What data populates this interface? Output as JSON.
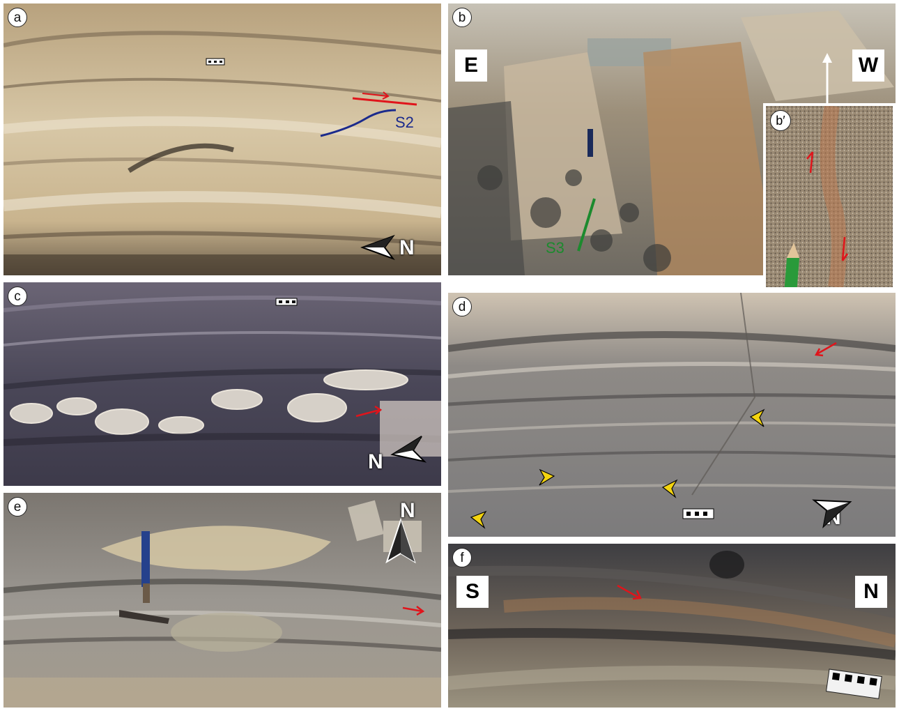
{
  "panels": {
    "a": {
      "label": "a",
      "north": "N",
      "foliation": "S2"
    },
    "b": {
      "label": "b",
      "east": "E",
      "west": "W",
      "foliation": "S3"
    },
    "b_inset": {
      "label": "b′"
    },
    "c": {
      "label": "c",
      "north": "N"
    },
    "d": {
      "label": "d",
      "north": "N"
    },
    "e": {
      "label": "e",
      "north": "N"
    },
    "f": {
      "label": "f",
      "south": "S",
      "north": "N"
    }
  },
  "colors": {
    "shear_sense_arrow": "#e0141b",
    "s2_trace": "#1b2a8c",
    "s3_trace": "#1c8a2e",
    "marker_arrowhead": "#f4d40f"
  },
  "icons": [
    "north-arrow-icon",
    "shear-sense-arrow-icon",
    "marker-arrowhead-icon",
    "scale-bar-icon",
    "hammer-icon",
    "pencil-icon"
  ]
}
